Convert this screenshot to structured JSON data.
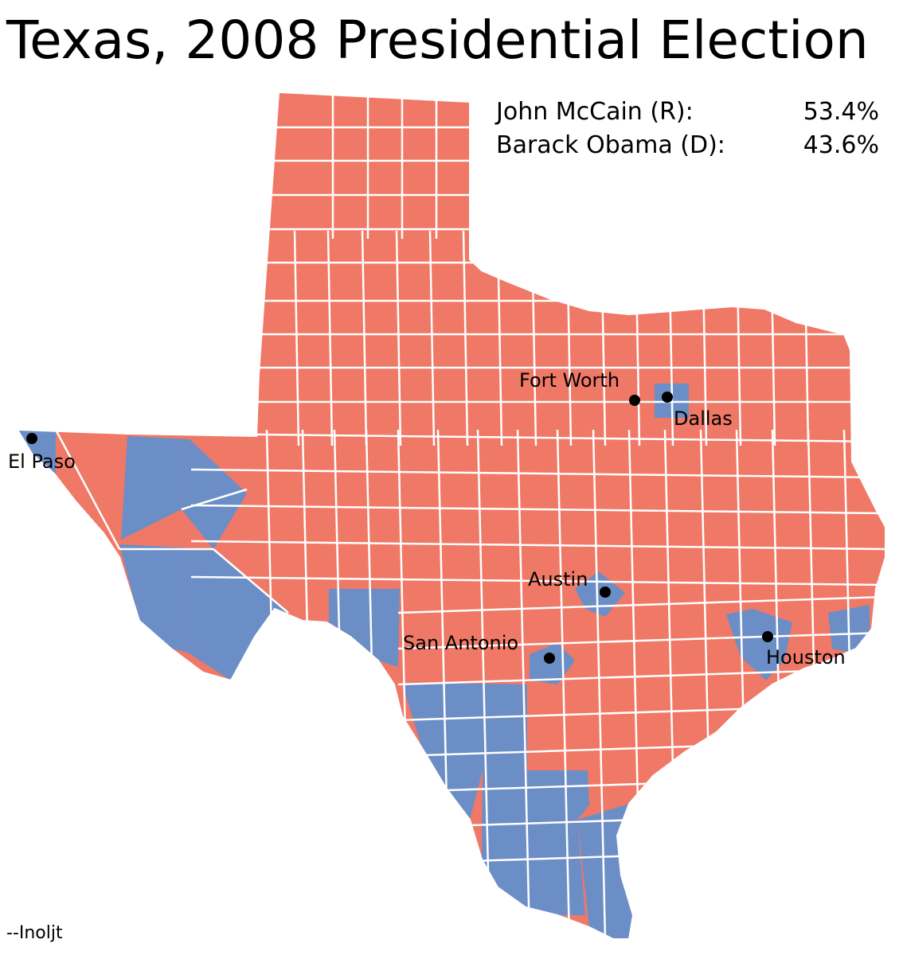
{
  "title": "Texas, 2008 Presidential Election",
  "results": [
    {
      "candidate": "John McCain (R):",
      "percent": "53.4%",
      "party_color": "#ef7866"
    },
    {
      "candidate": "Barack Obama (D):",
      "percent": "43.6%",
      "party_color": "#6b8ec6"
    }
  ],
  "cities": [
    {
      "name": "El Paso",
      "won_by": "D"
    },
    {
      "name": "Fort Worth",
      "won_by": "R"
    },
    {
      "name": "Dallas",
      "won_by": "D"
    },
    {
      "name": "Austin",
      "won_by": "D"
    },
    {
      "name": "San Antonio",
      "won_by": "D"
    },
    {
      "name": "Houston",
      "won_by": "D"
    }
  ],
  "credit": "--Inoljt",
  "colors": {
    "republican": "#ef7866",
    "democrat": "#6b8ec6",
    "county_border": "#ffffff",
    "city_marker": "#000000"
  }
}
